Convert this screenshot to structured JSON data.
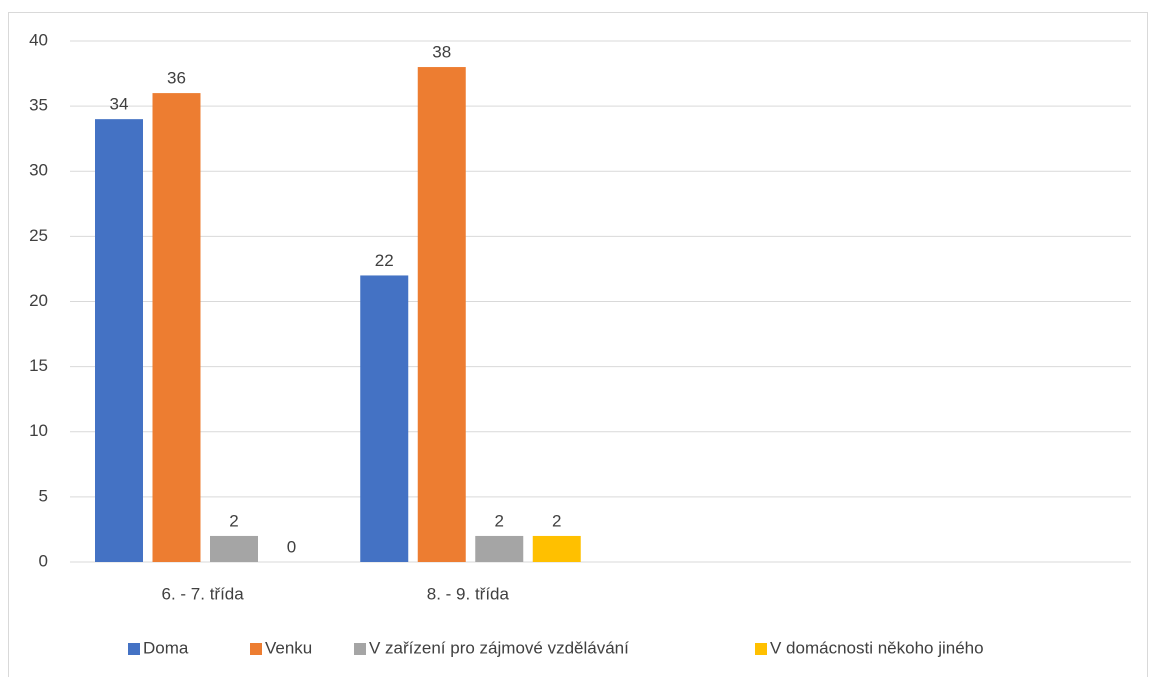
{
  "chart_data": {
    "type": "bar",
    "categories": [
      "6. - 7. třída",
      "8. - 9. třída",
      null,
      null
    ],
    "series": [
      {
        "name": "Doma",
        "color": "#4472c4",
        "values": [
          34,
          22,
          null,
          null
        ]
      },
      {
        "name": "Venku",
        "color": "#ed7d31",
        "values": [
          36,
          38,
          null,
          null
        ]
      },
      {
        "name": "V zařízení pro zájmové vzdělávání",
        "color": "#a5a5a5",
        "values": [
          2,
          2,
          null,
          null
        ]
      },
      {
        "name": "V domácnosti někoho jiného",
        "color": "#ffc000",
        "values": [
          0,
          2,
          null,
          null
        ]
      }
    ],
    "ylim": [
      0,
      40
    ],
    "yticks": [
      0,
      5,
      10,
      15,
      20,
      25,
      30,
      35,
      40
    ],
    "grid": true,
    "legend": "bottom"
  }
}
